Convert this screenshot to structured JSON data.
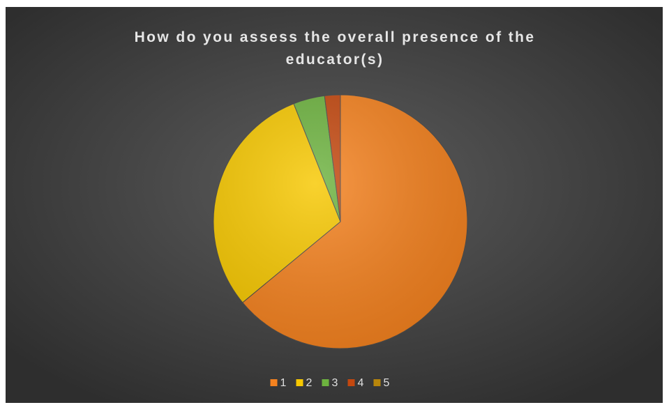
{
  "chart_data": {
    "type": "pie",
    "title": "How do you assess the overall presence of the educator(s)",
    "categories": [
      "1",
      "2",
      "3",
      "4",
      "5"
    ],
    "values": [
      64,
      30,
      4,
      2,
      0
    ],
    "colors": [
      "#f5821f",
      "#f7c800",
      "#6db33f",
      "#c4480f",
      "#b8860b"
    ],
    "legend": "bottom"
  }
}
